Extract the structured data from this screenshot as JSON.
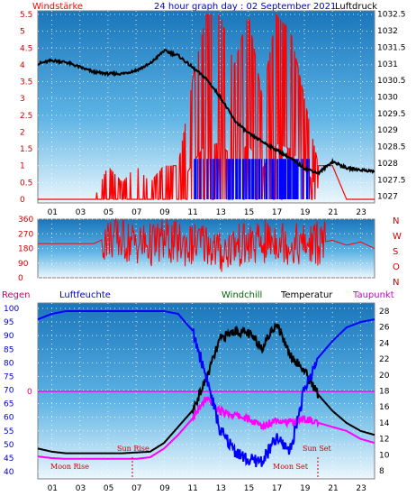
{
  "header": {
    "left_label": "Windstärke",
    "title": "24 hour graph day : 02 September 2021",
    "right_label": "Luftdruck"
  },
  "hour_ticks": [
    "01",
    "03",
    "05",
    "07",
    "09",
    "11",
    "13",
    "15",
    "17",
    "19",
    "21",
    "23"
  ],
  "wind_axis": {
    "ticks": [
      "5.5",
      "5",
      "4.5",
      "4",
      "3.5",
      "3",
      "2.5",
      "2",
      "1.5",
      "1",
      "0.5",
      "0"
    ]
  },
  "pressure_axis": {
    "ticks": [
      "1032.5",
      "1032",
      "1031.5",
      "1031",
      "1030.5",
      "1030",
      "1029.5",
      "1029",
      "1028.5",
      "1028",
      "1027.5",
      "1027"
    ]
  },
  "direction_axis": {
    "ticks": [
      "360",
      "270",
      "180",
      "90",
      "0"
    ],
    "compass": [
      "N",
      "W",
      "S",
      "O",
      "N"
    ]
  },
  "bottom_legend": {
    "regen": "Regen",
    "luftfeuchte": "Luftfeuchte",
    "windchill": "Windchill",
    "temperatur": "Temperatur",
    "taupunkt": "Taupunkt"
  },
  "humidity_axis": {
    "ticks": [
      "100",
      "95",
      "90",
      "85",
      "80",
      "75",
      "70",
      "65",
      "60",
      "55",
      "50",
      "45",
      "40"
    ]
  },
  "rain_axis": {
    "value": "0"
  },
  "temp_axis": {
    "ticks": [
      "28",
      "26",
      "24",
      "22",
      "20",
      "18",
      "16",
      "14",
      "12",
      "10",
      "8"
    ]
  },
  "astro": {
    "sun_rise": "Sun Rise",
    "sun_set": "Sun Set",
    "moon_rise": "Moon Rise",
    "moon_set": "Moon Set"
  },
  "colors": {
    "wind": "#ff0000",
    "gust": "#0000ff",
    "pressure": "#000000",
    "direction": "#ff0000",
    "humidity": "#0000ff",
    "temperature": "#000000",
    "dewpoint": "#ff00ff",
    "rain": "#cc0066"
  },
  "chart_data": [
    {
      "type": "line",
      "title": "24 hour graph day : 02 September 2021",
      "xlabel": "",
      "x_range": [
        0,
        24
      ],
      "series": [
        {
          "name": "Windstärke",
          "axis": "left",
          "ylim": [
            0,
            5.5
          ],
          "x": [
            0,
            4,
            5,
            6,
            7,
            8,
            9,
            10,
            11,
            12,
            13,
            14,
            15,
            16,
            17,
            18,
            19,
            20,
            21,
            22,
            23,
            24
          ],
          "values": [
            0,
            0,
            1,
            0.5,
            1,
            0.5,
            1,
            1,
            3.5,
            5.5,
            5.5,
            4,
            5.5,
            3,
            5.5,
            5,
            3,
            1,
            1,
            0,
            0,
            0
          ]
        },
        {
          "name": "Luftdruck",
          "axis": "right",
          "ylim": [
            1026.8,
            1032.6
          ],
          "x": [
            0,
            1,
            2,
            3,
            4,
            5,
            6,
            7,
            8,
            9,
            10,
            11,
            12,
            13,
            14,
            15,
            16,
            17,
            18,
            19,
            20,
            21,
            22,
            23,
            24
          ],
          "values": [
            1031.0,
            1031.1,
            1031.05,
            1030.9,
            1030.75,
            1030.7,
            1030.7,
            1030.8,
            1031.0,
            1031.4,
            1031.25,
            1030.9,
            1030.55,
            1030.0,
            1029.3,
            1028.9,
            1028.65,
            1028.4,
            1028.15,
            1027.85,
            1027.7,
            1028.05,
            1027.85,
            1027.8,
            1027.75
          ]
        }
      ]
    },
    {
      "type": "line",
      "ylim": [
        0,
        360
      ],
      "x_range": [
        0,
        24
      ],
      "series": [
        {
          "name": "Windrichtung",
          "x": [
            0,
            4,
            5,
            6,
            7,
            8,
            9,
            10,
            11,
            12,
            13,
            14,
            15,
            16,
            17,
            18,
            19,
            20,
            21,
            22,
            23,
            24
          ],
          "values": [
            210,
            210,
            250,
            230,
            215,
            200,
            230,
            210,
            200,
            220,
            150,
            200,
            200,
            210,
            240,
            210,
            200,
            215,
            230,
            200,
            220,
            180
          ]
        }
      ]
    },
    {
      "type": "line",
      "x_range": [
        0,
        24
      ],
      "series": [
        {
          "name": "Luftfeuchte",
          "axis": "left",
          "ylim": [
            40,
            100
          ],
          "x": [
            0,
            1,
            2,
            3,
            4,
            5,
            6,
            7,
            8,
            9,
            10,
            11,
            12,
            13,
            14,
            15,
            16,
            17,
            18,
            19,
            20,
            21,
            22,
            23,
            24
          ],
          "values": [
            96,
            98,
            99,
            99,
            99,
            99,
            99,
            99,
            99,
            99,
            98,
            92,
            75,
            55,
            48,
            44,
            44,
            52,
            48,
            70,
            82,
            88,
            93,
            95,
            96
          ]
        },
        {
          "name": "Temperatur",
          "axis": "right",
          "ylim": [
            7,
            29
          ],
          "x": [
            0,
            1,
            2,
            3,
            4,
            5,
            6,
            7,
            8,
            9,
            10,
            11,
            12,
            13,
            14,
            15,
            16,
            17,
            18,
            19,
            20,
            21,
            22,
            23,
            24
          ],
          "values": [
            10.8,
            10.4,
            10.2,
            10.2,
            10.2,
            10.2,
            10.2,
            10.3,
            10.4,
            11.5,
            13.5,
            15.5,
            19.5,
            24.5,
            25.5,
            25.2,
            23.5,
            26.5,
            22.5,
            20.5,
            17.5,
            15.5,
            14.0,
            13.0,
            12.5
          ]
        },
        {
          "name": "Taupunkt",
          "axis": "right",
          "ylim": [
            7,
            29
          ],
          "x": [
            0,
            1,
            2,
            3,
            4,
            5,
            6,
            7,
            8,
            9,
            10,
            11,
            12,
            13,
            14,
            15,
            16,
            17,
            18,
            19,
            20,
            21,
            22,
            23,
            24
          ],
          "values": [
            9.8,
            9.6,
            9.5,
            9.5,
            9.5,
            9.5,
            9.5,
            9.5,
            9.7,
            10.8,
            12.5,
            14.5,
            17.0,
            15.5,
            15.0,
            14.5,
            13.5,
            14.5,
            14.0,
            14.5,
            14.0,
            13.5,
            13.0,
            12.0,
            11.5
          ]
        },
        {
          "name": "Regen",
          "ylim": [
            0,
            1
          ],
          "x": [
            0,
            24
          ],
          "values": [
            0,
            0
          ]
        }
      ]
    }
  ]
}
